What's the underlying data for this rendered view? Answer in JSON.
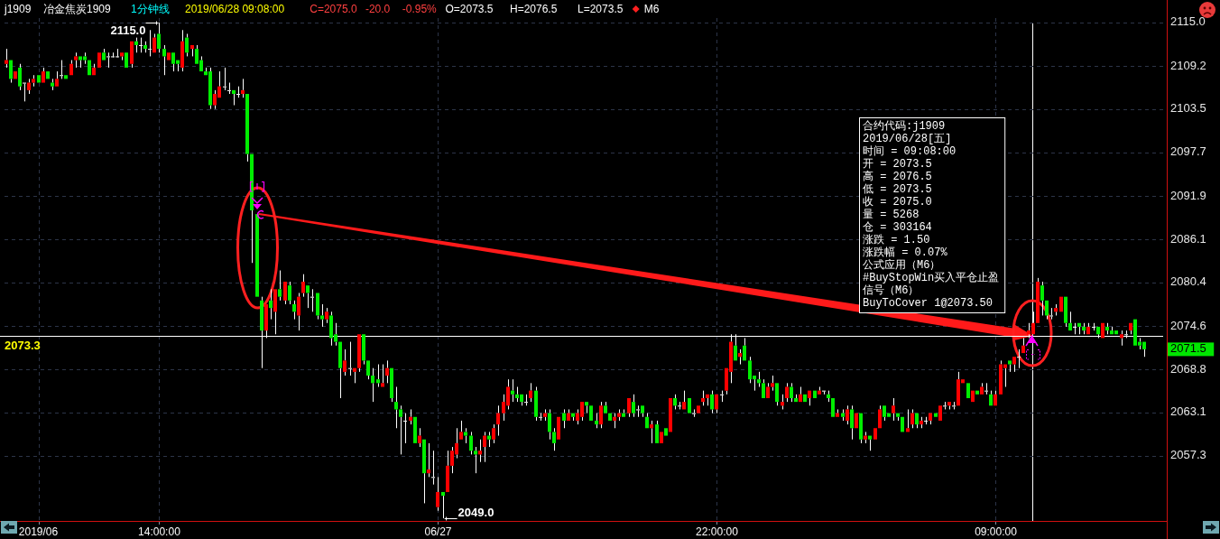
{
  "chart_data": [
    {
      "type": "candlestick",
      "title": "j1909",
      "subtitle": "冶金焦炭1909",
      "annotations": [
        "1分钟线",
        "2019/06/28 09:08:00",
        "C=2075.0",
        "-20.0",
        "-0.95%",
        "O=2073.5",
        "H=2076.5",
        "L=2073.5",
        "M6",
        "2071.5",
        "2049.0",
        {
          "text": "2115.0",
          "x": "14:00:00",
          "y": 2115
        }
      ],
      "categories": [
        null,
        null,
        null,
        null,
        null,
        null,
        null,
        "2019/06",
        null,
        null,
        null,
        null,
        null,
        null,
        null,
        null,
        null,
        null,
        null,
        null,
        null,
        null,
        null,
        null,
        null,
        null,
        null,
        null,
        null,
        null,
        null,
        null,
        null,
        "14:00:00",
        null,
        null,
        null,
        null,
        null,
        null,
        null,
        null,
        null,
        null,
        null,
        null,
        null,
        null,
        null,
        null,
        null,
        null,
        null,
        null,
        null,
        null,
        null,
        null,
        null,
        null,
        null,
        null,
        null,
        null,
        null,
        null,
        null,
        null,
        null,
        null,
        null,
        null,
        null,
        null,
        null,
        null,
        null,
        null,
        null,
        null,
        null,
        null,
        null,
        null,
        null,
        null,
        null,
        null,
        null,
        null,
        null,
        null,
        null,
        "06/27",
        null,
        null,
        null,
        null,
        null,
        null,
        null,
        null,
        null,
        null,
        null,
        null,
        null,
        null,
        null,
        null,
        null,
        null,
        null,
        null,
        null,
        null,
        null,
        null,
        null,
        null,
        null,
        null,
        null,
        null,
        null,
        null,
        null,
        null,
        null,
        null,
        null,
        null,
        null,
        null,
        null,
        null,
        null,
        null,
        null,
        null,
        null,
        null,
        null,
        null,
        null,
        null,
        null,
        null,
        null,
        null,
        null,
        null,
        null,
        "22:00:00",
        null,
        null,
        null,
        null,
        null,
        null,
        null,
        null,
        null,
        null,
        null,
        null,
        null,
        null,
        null,
        null,
        null,
        null,
        null,
        null,
        null,
        null,
        null,
        null,
        null,
        null,
        null,
        null,
        null,
        null,
        null,
        null,
        null,
        null,
        null,
        null,
        null,
        null,
        null,
        null,
        null,
        null,
        null,
        null,
        null,
        null,
        null,
        null,
        null,
        null,
        null,
        null,
        null,
        null,
        null,
        null,
        null,
        null,
        null,
        "09:00:00",
        null,
        null,
        null,
        null,
        null,
        null,
        null,
        null,
        null,
        null,
        null,
        null,
        null,
        null,
        null,
        null,
        null,
        null,
        null,
        null,
        null,
        null,
        null,
        null,
        null,
        null,
        null,
        null,
        null,
        null,
        null,
        null
      ],
      "ohlc": [
        [
          2109.5,
          2111.5,
          2109,
          2110
        ],
        [
          2110,
          2110,
          2107,
          2107.5
        ],
        [
          2107.5,
          2108.5,
          2107.5,
          2108.5
        ],
        [
          2109,
          2109.5,
          2106,
          2106.5
        ],
        [
          2107,
          2107,
          2104.5,
          2107
        ],
        [
          2106,
          2107.5,
          2105.5,
          2107
        ],
        [
          2107,
          2108,
          2106.5,
          2107.5
        ],
        [
          2108,
          2108,
          2107,
          2107
        ],
        [
          2107,
          2109,
          2107,
          2108.5
        ],
        [
          2108.5,
          2108.5,
          2107.5,
          2107.5
        ],
        [
          2107,
          2107.5,
          2106,
          2106.5
        ],
        [
          2106.5,
          2108.5,
          2106.5,
          2107.5
        ],
        [
          2108,
          2110,
          2107.5,
          2108
        ],
        [
          2108,
          2108,
          2107.5,
          2107.5
        ],
        [
          2108,
          2110,
          2108,
          2109.5
        ],
        [
          2110,
          2111,
          2109,
          2110.5
        ],
        [
          2110.5,
          2110.5,
          2109,
          2110
        ],
        [
          2110.5,
          2111,
          2109.5,
          2110
        ],
        [
          2110,
          2110,
          2108,
          2108
        ],
        [
          2108,
          2109.5,
          2108,
          2109
        ],
        [
          2109,
          2111,
          2109,
          2111
        ],
        [
          2111,
          2111.5,
          2110,
          2110
        ],
        [
          2110.5,
          2111,
          2109,
          2110.5
        ],
        [
          2110.5,
          2111,
          2110.5,
          2110.5
        ],
        [
          2110.5,
          2111.5,
          2110.5,
          2110.5
        ],
        [
          2110.5,
          2111,
          2110,
          2111
        ],
        [
          2111,
          2111,
          2109,
          2109
        ],
        [
          2109.5,
          2112.5,
          2109,
          2112.5
        ],
        [
          2112.5,
          2113,
          2111,
          2112
        ],
        [
          2112,
          2113,
          2111,
          2112
        ],
        [
          2112,
          2112.5,
          2111,
          2111.5
        ],
        [
          2111.5,
          2114,
          2110.5,
          2111.5
        ],
        [
          2111,
          2113.5,
          2111,
          2113
        ],
        [
          2113.5,
          2115,
          2111,
          2111.5
        ],
        [
          2111.5,
          2112,
          2108,
          2110.5
        ],
        [
          2110,
          2111,
          2110,
          2111
        ],
        [
          2111,
          2111,
          2108.5,
          2109.5
        ],
        [
          2110,
          2110,
          2108.5,
          2109.5
        ],
        [
          2109,
          2114,
          2108.5,
          2112.5
        ],
        [
          2113,
          2113.5,
          2110.5,
          2111
        ],
        [
          2111.5,
          2112,
          2110.5,
          2112
        ],
        [
          2111.5,
          2112,
          2109.5,
          2109.5
        ],
        [
          2110,
          2110.5,
          2108.5,
          2108.5
        ],
        [
          2108.5,
          2109,
          2108,
          2108
        ],
        [
          2108.5,
          2109,
          2103.5,
          2104
        ],
        [
          2104,
          2106,
          2103.5,
          2105.5
        ],
        [
          2105,
          2108.5,
          2105,
          2106.5
        ],
        [
          2106.5,
          2109,
          2106,
          2106.5
        ],
        [
          2106,
          2107,
          2105.5,
          2106
        ],
        [
          2106,
          2106,
          2104,
          2105.5
        ],
        [
          2105.5,
          2106.5,
          2105,
          2105.5
        ],
        [
          2105.5,
          2107.5,
          2105,
          2106
        ],
        [
          2105.5,
          2105.5,
          2096.5,
          2097.5
        ],
        [
          2097.5,
          2097.5,
          2083,
          2090
        ],
        [
          2089.5,
          2089.5,
          2078.5,
          2078.5
        ],
        [
          2078,
          2078.5,
          2069,
          2074
        ],
        [
          2074,
          2077.5,
          2073,
          2077.5
        ],
        [
          2078,
          2079.5,
          2075.5,
          2077
        ],
        [
          2076.5,
          2079.5,
          2073.5,
          2079.5
        ],
        [
          2079.5,
          2082,
          2078,
          2078.5
        ],
        [
          2078,
          2080.5,
          2077.5,
          2080.5
        ],
        [
          2080,
          2080.5,
          2077.5,
          2078
        ],
        [
          2077.5,
          2078,
          2075.5,
          2076.5
        ],
        [
          2076,
          2079,
          2074,
          2078.5
        ],
        [
          2079,
          2081.5,
          2078.5,
          2080.5
        ],
        [
          2080,
          2080,
          2077,
          2079
        ],
        [
          2078.5,
          2079.5,
          2076.5,
          2078.5
        ],
        [
          2079,
          2079,
          2075.5,
          2076
        ],
        [
          2076,
          2077.5,
          2074.5,
          2075.5
        ],
        [
          2075.5,
          2077,
          2075,
          2076.5
        ],
        [
          2076,
          2076.5,
          2072,
          2073
        ],
        [
          2073.5,
          2075,
          2072,
          2072.5
        ],
        [
          2072.5,
          2072.5,
          2065,
          2069
        ],
        [
          2068.5,
          2071.5,
          2068,
          2070
        ],
        [
          2069,
          2072.5,
          2068,
          2069
        ],
        [
          2068.5,
          2069,
          2067,
          2069
        ],
        [
          2069,
          2073.5,
          2068.5,
          2073.5
        ],
        [
          2073.5,
          2073.5,
          2069.5,
          2070
        ],
        [
          2070,
          2070,
          2067.5,
          2068
        ],
        [
          2068,
          2069,
          2064.5,
          2067
        ],
        [
          2067.5,
          2069.5,
          2066.5,
          2067
        ],
        [
          2066.5,
          2069.5,
          2066.5,
          2067
        ],
        [
          2068,
          2070,
          2067,
          2069
        ],
        [
          2069,
          2069,
          2064.5,
          2065
        ],
        [
          2064.5,
          2066.5,
          2061,
          2063.5
        ],
        [
          2063.5,
          2064,
          2057.5,
          2062.5
        ],
        [
          2062,
          2063,
          2059,
          2062
        ],
        [
          2062,
          2063.5,
          2061.5,
          2062.5
        ],
        [
          2062.5,
          2062.5,
          2059,
          2059
        ],
        [
          2059,
          2061,
          2058.5,
          2060
        ],
        [
          2059.5,
          2059.5,
          2051,
          2055
        ],
        [
          2055,
          2059,
          2054.5,
          2055.5
        ],
        [
          2054.5,
          2058,
          2053.5,
          2054.5
        ],
        [
          2050.5,
          2054.5,
          2050,
          2052.5
        ],
        [
          2052.5,
          2052.5,
          2049,
          2052
        ],
        [
          2052.5,
          2058,
          2052.5,
          2056
        ],
        [
          2056,
          2058.5,
          2055,
          2058
        ],
        [
          2057.5,
          2061,
          2057,
          2059
        ],
        [
          2059.5,
          2062,
          2059.5,
          2060.5
        ],
        [
          2060.5,
          2061,
          2059,
          2060
        ],
        [
          2060,
          2060.5,
          2057.5,
          2058
        ],
        [
          2058,
          2058.5,
          2055,
          2057.5
        ],
        [
          2057.5,
          2059.5,
          2056.5,
          2058
        ],
        [
          2058.5,
          2060.5,
          2056.5,
          2060
        ],
        [
          2060,
          2060.5,
          2058.5,
          2059.5
        ],
        [
          2059.5,
          2061.5,
          2059,
          2061
        ],
        [
          2061.5,
          2064,
          2060,
          2063
        ],
        [
          2063,
          2065.5,
          2062,
          2064.5
        ],
        [
          2064,
          2067.5,
          2063.5,
          2066.5
        ],
        [
          2066,
          2067.5,
          2064.5,
          2065.5
        ],
        [
          2065.5,
          2066.5,
          2064.5,
          2065
        ],
        [
          2065.5,
          2065.5,
          2064,
          2064.5
        ],
        [
          2064.5,
          2065.5,
          2064,
          2064.5
        ],
        [
          2065,
          2067,
          2064.5,
          2066
        ],
        [
          2066,
          2066.5,
          2062,
          2062.5
        ],
        [
          2062.5,
          2063,
          2062,
          2062.5
        ],
        [
          2062.5,
          2063.5,
          2062,
          2063
        ],
        [
          2063,
          2063.5,
          2059.5,
          2060.5
        ],
        [
          2060.5,
          2061,
          2058,
          2059
        ],
        [
          2059.5,
          2062.5,
          2059.5,
          2062.5
        ],
        [
          2063,
          2063.5,
          2061,
          2062
        ],
        [
          2062,
          2063.5,
          2062,
          2063
        ],
        [
          2063,
          2063,
          2062,
          2062.5
        ],
        [
          2062,
          2063.5,
          2061.5,
          2063
        ],
        [
          2062.5,
          2064.5,
          2062,
          2064.5
        ],
        [
          2064.5,
          2064.5,
          2063,
          2064
        ],
        [
          2064,
          2064,
          2062,
          2062
        ],
        [
          2062,
          2063,
          2061,
          2061.5
        ],
        [
          2061.5,
          2064.5,
          2061,
          2064
        ],
        [
          2064,
          2064.5,
          2063,
          2063
        ],
        [
          2063,
          2063,
          2062,
          2062
        ],
        [
          2062,
          2063,
          2061,
          2062.5
        ],
        [
          2062.5,
          2063.5,
          2062,
          2063
        ],
        [
          2063,
          2063.5,
          2062.5,
          2062.5
        ],
        [
          2063,
          2065,
          2062.5,
          2065
        ],
        [
          2064.5,
          2065.5,
          2062.5,
          2063
        ],
        [
          2063.5,
          2064,
          2062.5,
          2063.5
        ],
        [
          2064,
          2064,
          2062.5,
          2063
        ],
        [
          2062.5,
          2063,
          2061,
          2061
        ],
        [
          2061,
          2062,
          2059,
          2061.5
        ],
        [
          2061.5,
          2062,
          2059,
          2059
        ],
        [
          2059,
          2060.5,
          2059,
          2060.5
        ],
        [
          2061,
          2061,
          2060,
          2060
        ],
        [
          2060.5,
          2065,
          2060.5,
          2065
        ],
        [
          2065,
          2065.5,
          2063.5,
          2064
        ],
        [
          2064,
          2064.5,
          2063.5,
          2064
        ],
        [
          2063.5,
          2066,
          2063.5,
          2064.5
        ],
        [
          2065,
          2065,
          2063,
          2063
        ],
        [
          2063,
          2063.5,
          2062.5,
          2063
        ],
        [
          2063,
          2064,
          2063,
          2064
        ],
        [
          2064.5,
          2066,
          2064,
          2065
        ],
        [
          2065,
          2065.5,
          2064,
          2065.5
        ],
        [
          2065.5,
          2066,
          2063,
          2063.5
        ],
        [
          2063.5,
          2065.5,
          2063,
          2065.5
        ],
        [
          2065.5,
          2066,
          2064.5,
          2065.5
        ],
        [
          2066,
          2069,
          2065.5,
          2069
        ],
        [
          2068.5,
          2073.5,
          2067,
          2072.5
        ],
        [
          2072,
          2073.5,
          2070,
          2070
        ],
        [
          2070.5,
          2071.5,
          2069.5,
          2071
        ],
        [
          2072,
          2073,
          2070,
          2070
        ],
        [
          2070,
          2070.5,
          2067,
          2067.5
        ],
        [
          2068,
          2068,
          2066,
          2067.5
        ],
        [
          2067.5,
          2068.5,
          2066.5,
          2067
        ],
        [
          2067,
          2067.5,
          2065,
          2065
        ],
        [
          2065,
          2067,
          2065,
          2066.5
        ],
        [
          2066.5,
          2068,
          2066,
          2067
        ],
        [
          2067,
          2067,
          2064,
          2064.5
        ],
        [
          2064,
          2065.5,
          2063.5,
          2064.5
        ],
        [
          2065,
          2067,
          2064.5,
          2066.5
        ],
        [
          2066.5,
          2067,
          2064.5,
          2065
        ],
        [
          2065,
          2065.5,
          2064.5,
          2064.5
        ],
        [
          2064.5,
          2066.5,
          2064.5,
          2065.5
        ],
        [
          2065.5,
          2065.5,
          2064.5,
          2064.5
        ],
        [
          2065,
          2066,
          2064,
          2066
        ],
        [
          2066,
          2066,
          2065,
          2065
        ],
        [
          2065.5,
          2066.5,
          2065.5,
          2066
        ],
        [
          2066,
          2066,
          2065.5,
          2066
        ],
        [
          2065.5,
          2066,
          2064.5,
          2065
        ],
        [
          2065,
          2065,
          2062.5,
          2062.5
        ],
        [
          2062.5,
          2063.5,
          2062.5,
          2063
        ],
        [
          2063,
          2063.5,
          2062,
          2062.5
        ],
        [
          2062,
          2064,
          2061.5,
          2063.5
        ],
        [
          2063.5,
          2064,
          2059.5,
          2061
        ],
        [
          2061,
          2063,
          2061,
          2063
        ],
        [
          2063,
          2063,
          2059,
          2059.5
        ],
        [
          2059.5,
          2060.5,
          2059,
          2060
        ],
        [
          2060,
          2060,
          2058,
          2059.5
        ],
        [
          2059.5,
          2061,
          2059.5,
          2061
        ],
        [
          2061,
          2064,
          2061,
          2063.5
        ],
        [
          2064,
          2064,
          2062,
          2062.5
        ],
        [
          2063,
          2063,
          2062.5,
          2062.5
        ],
        [
          2063,
          2065,
          2062,
          2064
        ],
        [
          2063,
          2063,
          2062,
          2062.5
        ],
        [
          2062.5,
          2062.5,
          2060.5,
          2060.5
        ],
        [
          2060.5,
          2063.5,
          2060.5,
          2061
        ],
        [
          2061.5,
          2063.5,
          2061,
          2063
        ],
        [
          2063,
          2063,
          2061,
          2061.5
        ],
        [
          2061.5,
          2062.5,
          2061,
          2062
        ],
        [
          2062,
          2062.5,
          2061.5,
          2062
        ],
        [
          2062,
          2063,
          2061.5,
          2063
        ],
        [
          2063,
          2063,
          2062.5,
          2062.5
        ],
        [
          2062,
          2064,
          2062,
          2064
        ],
        [
          2064,
          2064.5,
          2063.5,
          2064
        ],
        [
          2064,
          2064.5,
          2063.5,
          2064.5
        ],
        [
          2064,
          2064.5,
          2063.5,
          2064
        ],
        [
          2064,
          2068.5,
          2064,
          2067.5
        ],
        [
          2067,
          2067.5,
          2067,
          2067.5
        ],
        [
          2067,
          2067,
          2065,
          2065
        ],
        [
          2064.5,
          2066,
          2064.5,
          2066
        ],
        [
          2066,
          2066,
          2065.5,
          2065.5
        ],
        [
          2065.5,
          2067,
          2065.5,
          2066.5
        ],
        [
          2066,
          2067,
          2065.5,
          2066
        ],
        [
          2065.5,
          2066,
          2064,
          2064
        ],
        [
          2064,
          2066,
          2064,
          2065.5
        ],
        [
          2065.5,
          2070,
          2065.5,
          2069.5
        ],
        [
          2069,
          2069.5,
          2066.5,
          2069.5
        ],
        [
          2070,
          2070,
          2068.5,
          2069.5
        ],
        [
          2069.5,
          2070.5,
          2068.5,
          2070.5
        ],
        [
          2070.5,
          2071.5,
          2069,
          2070.5
        ],
        [
          2071,
          2073,
          2071,
          2072
        ],
        [
          2073.5,
          2075,
          2073,
          2074
        ],
        [
          2073.5,
          2076.5,
          2073.5,
          2075
        ],
        [
          2075,
          2081,
          2075,
          2080.5
        ],
        [
          2080,
          2080.5,
          2076,
          2078
        ],
        [
          2078,
          2078,
          2075.5,
          2076
        ],
        [
          2076,
          2077,
          2075.5,
          2076
        ],
        [
          2076.5,
          2077.5,
          2076,
          2077
        ],
        [
          2076.5,
          2078.5,
          2076.5,
          2078.5
        ],
        [
          2078.5,
          2078.5,
          2074.5,
          2075
        ],
        [
          2075,
          2076.5,
          2074,
          2074
        ],
        [
          2074.5,
          2075,
          2073.5,
          2074.5
        ],
        [
          2075,
          2075,
          2073.5,
          2074.5
        ],
        [
          2074.5,
          2075,
          2073.5,
          2074
        ],
        [
          2073.5,
          2075,
          2073.5,
          2074.5
        ],
        [
          2074.5,
          2075,
          2074,
          2074.5
        ],
        [
          2074.5,
          2074.5,
          2073,
          2073.5
        ],
        [
          2073,
          2075,
          2073,
          2075
        ],
        [
          2074.5,
          2075,
          2073.5,
          2074
        ],
        [
          2074,
          2074.5,
          2073.5,
          2073.5
        ],
        [
          2074,
          2074,
          2073.5,
          2073.5
        ],
        [
          2073,
          2074,
          2072,
          2073.5
        ],
        [
          2073.5,
          2074,
          2073,
          2073.5
        ],
        [
          2074,
          2075,
          2073.5,
          2075
        ],
        [
          2075.5,
          2075.5,
          2072,
          2072
        ],
        [
          2072.5,
          2073,
          2071.5,
          2072
        ],
        [
          2072.5,
          2072.5,
          2070.5,
          2071.5
        ]
      ],
      "colors": [
        "#ff0000",
        "#00ee00",
        "#ff0000",
        "#00ee00",
        "#ffffff",
        "#ff0000",
        "#ff0000",
        "#00ee00",
        "#ff0000",
        "#00ee00",
        "#00ee00",
        "#ff0000",
        "#ffffff",
        "#00ee00",
        "#ff0000",
        "#ff0000",
        "#00ee00",
        "#00ee00",
        "#00ee00",
        "#ff0000",
        "#ff0000",
        "#00ee00",
        "#ffffff",
        "#ffffff",
        "#ffffff",
        "#ff0000",
        "#00ee00",
        "#ff0000",
        "#00ee00",
        "#ffffff",
        "#00ee00",
        "#ffffff",
        "#ff0000",
        "#00ee00",
        "#00ee00",
        "#ff0000",
        "#00ee00",
        "#00ee00",
        "#ff0000",
        "#00ee00",
        "#ff0000",
        "#00ee00",
        "#00ee00",
        "#00ee00",
        "#00ee00",
        "#ff0000",
        "#ff0000",
        "#ffffff",
        "#ffffff",
        "#00ee00",
        "#ffffff",
        "#ff0000",
        "#00ee00",
        "#00ee00",
        "#00ee00",
        "#00ee00",
        "#ff0000",
        "#00ee00",
        "#ff0000",
        "#00ee00",
        "#ff0000",
        "#00ee00",
        "#00ee00",
        "#ff0000",
        "#ff0000",
        "#00ee00",
        "#ffffff",
        "#00ee00",
        "#00ee00",
        "#ff0000",
        "#00ee00",
        "#00ee00",
        "#00ee00",
        "#ff0000",
        "#ffffff",
        "#ff0000",
        "#ff0000",
        "#00ee00",
        "#00ee00",
        "#00ee00",
        "#00ee00",
        "#ff0000",
        "#ff0000",
        "#00ee00",
        "#00ee00",
        "#00ee00",
        "#ffffff",
        "#ff0000",
        "#00ee00",
        "#ff0000",
        "#00ee00",
        "#ff0000",
        "#ffffff",
        "#ff0000",
        "#00ee00",
        "#ff0000",
        "#ff0000",
        "#ff0000",
        "#ff0000",
        "#00ee00",
        "#00ee00",
        "#00ee00",
        "#ff0000",
        "#ff0000",
        "#00ee00",
        "#ff0000",
        "#ff0000",
        "#ff0000",
        "#ff0000",
        "#00ee00",
        "#00ee00",
        "#00ee00",
        "#ffffff",
        "#ff0000",
        "#00ee00",
        "#ffffff",
        "#ff0000",
        "#00ee00",
        "#00ee00",
        "#ff0000",
        "#00ee00",
        "#ff0000",
        "#00ee00",
        "#ff0000",
        "#ff0000",
        "#00ee00",
        "#00ee00",
        "#00ee00",
        "#ff0000",
        "#00ee00",
        "#00ee00",
        "#ff0000",
        "#ff0000",
        "#00ee00",
        "#ff0000",
        "#00ee00",
        "#ffffff",
        "#00ee00",
        "#00ee00",
        "#ff0000",
        "#00ee00",
        "#ff0000",
        "#00ee00",
        "#ff0000",
        "#00ee00",
        "#ffffff",
        "#ff0000",
        "#00ee00",
        "#ffffff",
        "#ff0000",
        "#ff0000",
        "#ff0000",
        "#00ee00",
        "#ff0000",
        "#ffffff",
        "#ff0000",
        "#ff0000",
        "#00ee00",
        "#ff0000",
        "#00ee00",
        "#00ee00",
        "#00ee00",
        "#00ee00",
        "#00ee00",
        "#ff0000",
        "#ff0000",
        "#00ee00",
        "#ff0000",
        "#ff0000",
        "#00ee00",
        "#00ee00",
        "#ff0000",
        "#00ee00",
        "#ff0000",
        "#00ee00",
        "#ff0000",
        "#ffffff",
        "#00ee00",
        "#00ee00",
        "#ff0000",
        "#00ee00",
        "#ff0000",
        "#00ee00",
        "#ff0000",
        "#00ee00",
        "#ff0000",
        "#00ee00",
        "#ff0000",
        "#ff0000",
        "#00ee00",
        "#00ee00",
        "#ff0000",
        "#00ee00",
        "#00ee00",
        "#ff0000",
        "#ff0000",
        "#00ee00",
        "#ff0000",
        "#ffffff",
        "#ff0000",
        "#00ee00",
        "#ff0000",
        "#ffffff",
        "#ff0000",
        "#ffffff",
        "#ff0000",
        "#ff0000",
        "#00ee00",
        "#ff0000",
        "#00ee00",
        "#ff0000",
        "#ffffff",
        "#00ee00",
        "#ff0000",
        "#ff0000",
        "#ff0000",
        "#00ee00",
        "#ff0000",
        "#ffffff",
        "#ff0000",
        "#ff0000",
        "#ff0000",
        "#ff0000",
        "#00ee00",
        "#00ee00",
        "#ffffff",
        "#ff0000",
        "#ff0000",
        "#00ee00",
        "#00ee00",
        "#ffffff",
        "#00ee00",
        "#00ee00",
        "#ff0000",
        "#ffffff",
        "#00ee00",
        "#ff0000",
        "#00ee00",
        "#00ee00",
        "#00ee00",
        "#ff0000",
        "#ffffff",
        "#ff0000",
        "#00ee00",
        "#00ee00",
        "#00ee00"
      ],
      "ylim": [
        2048.65,
        2115.6
      ],
      "yticks": [
        {
          "value": 2115,
          "label": "2115.0"
        },
        2109.2,
        2103.5,
        2097.7,
        2091.9,
        2086.1,
        2080.4,
        2074.6,
        2068.8,
        2063.1,
        2057.3
      ],
      "grid": true,
      "ref_lines": [
        {
          "axis": "y",
          "value": 2073.3,
          "label": "2073.3",
          "color": "#ffffff"
        }
      ]
    },
    {
      "type": "other",
      "annotations": [
        "合约代码:j1909",
        "2019/06/28[五]",
        "时间 = 09:08:00",
        "开 = 2073.5",
        "高 = 2076.5",
        "低 = 2073.5",
        "收 = 2075.0",
        "量 = 5268",
        "仓 = 303164",
        "涨跌 = 1.50",
        "涨跌幅 = 0.07%",
        "公式应用（M6）",
        "#BuyStopWin买入平仓止盈",
        "信号（M6）",
        "BuyToCover 1@2073.50"
      ]
    }
  ]
}
